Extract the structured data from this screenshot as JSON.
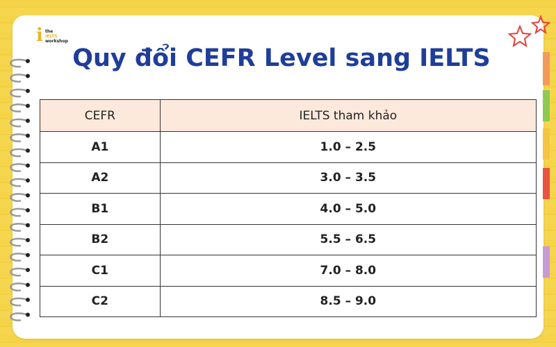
{
  "logo": {
    "lines": [
      "the",
      "IELTS",
      "workshop"
    ]
  },
  "title": "Quy đổi CEFR Level sang IELTS",
  "table": {
    "header": [
      "CEFR",
      "IELTS tham khảo"
    ],
    "rows": [
      [
        "A1",
        "1.0 – 2.5"
      ],
      [
        "A2",
        "3.0 – 3.5"
      ],
      [
        "B1",
        "4.0 – 5.0"
      ],
      [
        "B2",
        "5.5 – 6.5"
      ],
      [
        "C1",
        "7.0 – 8.0"
      ],
      [
        "C2",
        "8.5 – 9.0"
      ]
    ]
  }
}
